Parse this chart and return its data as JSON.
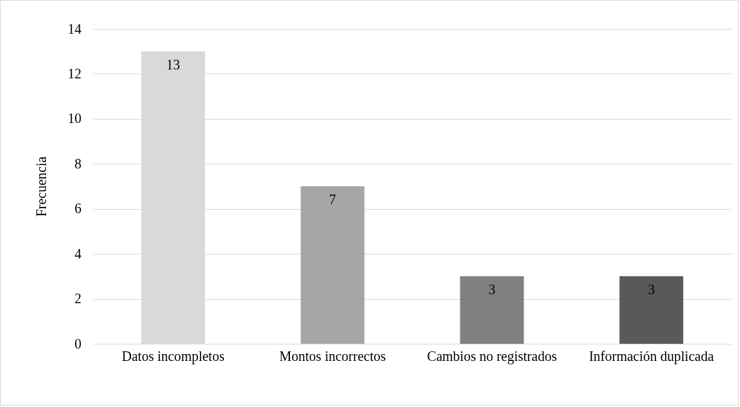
{
  "chart_data": {
    "type": "bar",
    "ylabel": "Frecuencia",
    "categories": [
      "Datos incompletos",
      "Montos incorrectos",
      "Cambios no registrados",
      "Información duplicada"
    ],
    "values": [
      13,
      7,
      3,
      3
    ],
    "colors": [
      "#d9d9d9",
      "#a6a6a6",
      "#808080",
      "#595959"
    ],
    "ylim": [
      0,
      14
    ],
    "yticks": [
      0,
      2,
      4,
      6,
      8,
      10,
      12,
      14
    ],
    "grid": "y",
    "data_labels": true
  }
}
